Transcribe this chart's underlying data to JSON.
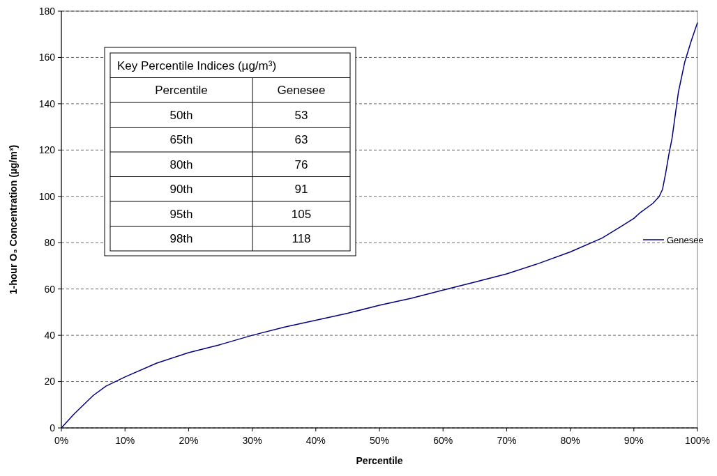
{
  "chart_data": {
    "type": "line",
    "xlabel": "Percentile",
    "ylabel": "1-hour O₃ Concentration (µg/m³)",
    "x": [
      0,
      2,
      5,
      7,
      10,
      15,
      20,
      25,
      30,
      35,
      40,
      45,
      50,
      55,
      60,
      65,
      70,
      75,
      80,
      85,
      88,
      90,
      91,
      93,
      94,
      94.5,
      95,
      95.5,
      96,
      97,
      98,
      99,
      100
    ],
    "series": [
      {
        "name": "Genesee",
        "color": "#000080",
        "values": [
          0,
          6,
          14,
          18,
          22,
          28,
          32.5,
          36,
          40,
          43.5,
          46.5,
          49.5,
          53,
          56,
          59.5,
          63,
          66.5,
          71,
          76,
          82,
          87,
          90.5,
          93,
          97,
          100,
          103,
          110,
          118,
          125,
          145,
          158,
          167,
          175
        ]
      }
    ],
    "xlim": [
      0,
      100
    ],
    "ylim": [
      0,
      180
    ],
    "xticks": [
      {
        "value": 0,
        "label": "0%"
      },
      {
        "value": 10,
        "label": "10%"
      },
      {
        "value": 20,
        "label": "20%"
      },
      {
        "value": 30,
        "label": "30%"
      },
      {
        "value": 40,
        "label": "40%"
      },
      {
        "value": 50,
        "label": "50%"
      },
      {
        "value": 60,
        "label": "60%"
      },
      {
        "value": 70,
        "label": "70%"
      },
      {
        "value": 80,
        "label": "80%"
      },
      {
        "value": 90,
        "label": "90%"
      },
      {
        "value": 100,
        "label": "100%"
      }
    ],
    "yticks": [
      0,
      20,
      40,
      60,
      80,
      100,
      120,
      140,
      160,
      180
    ],
    "grid": "y",
    "legend": "right",
    "line_style": "solid",
    "marker": "none",
    "annotations": [
      "Key Percentile Indices (µg/m³)",
      "Percentile",
      "Genesee",
      "50th",
      "53",
      "65th",
      "63",
      "80th",
      "76",
      "90th",
      "91",
      "95th",
      "105",
      "98th",
      "118"
    ]
  }
}
